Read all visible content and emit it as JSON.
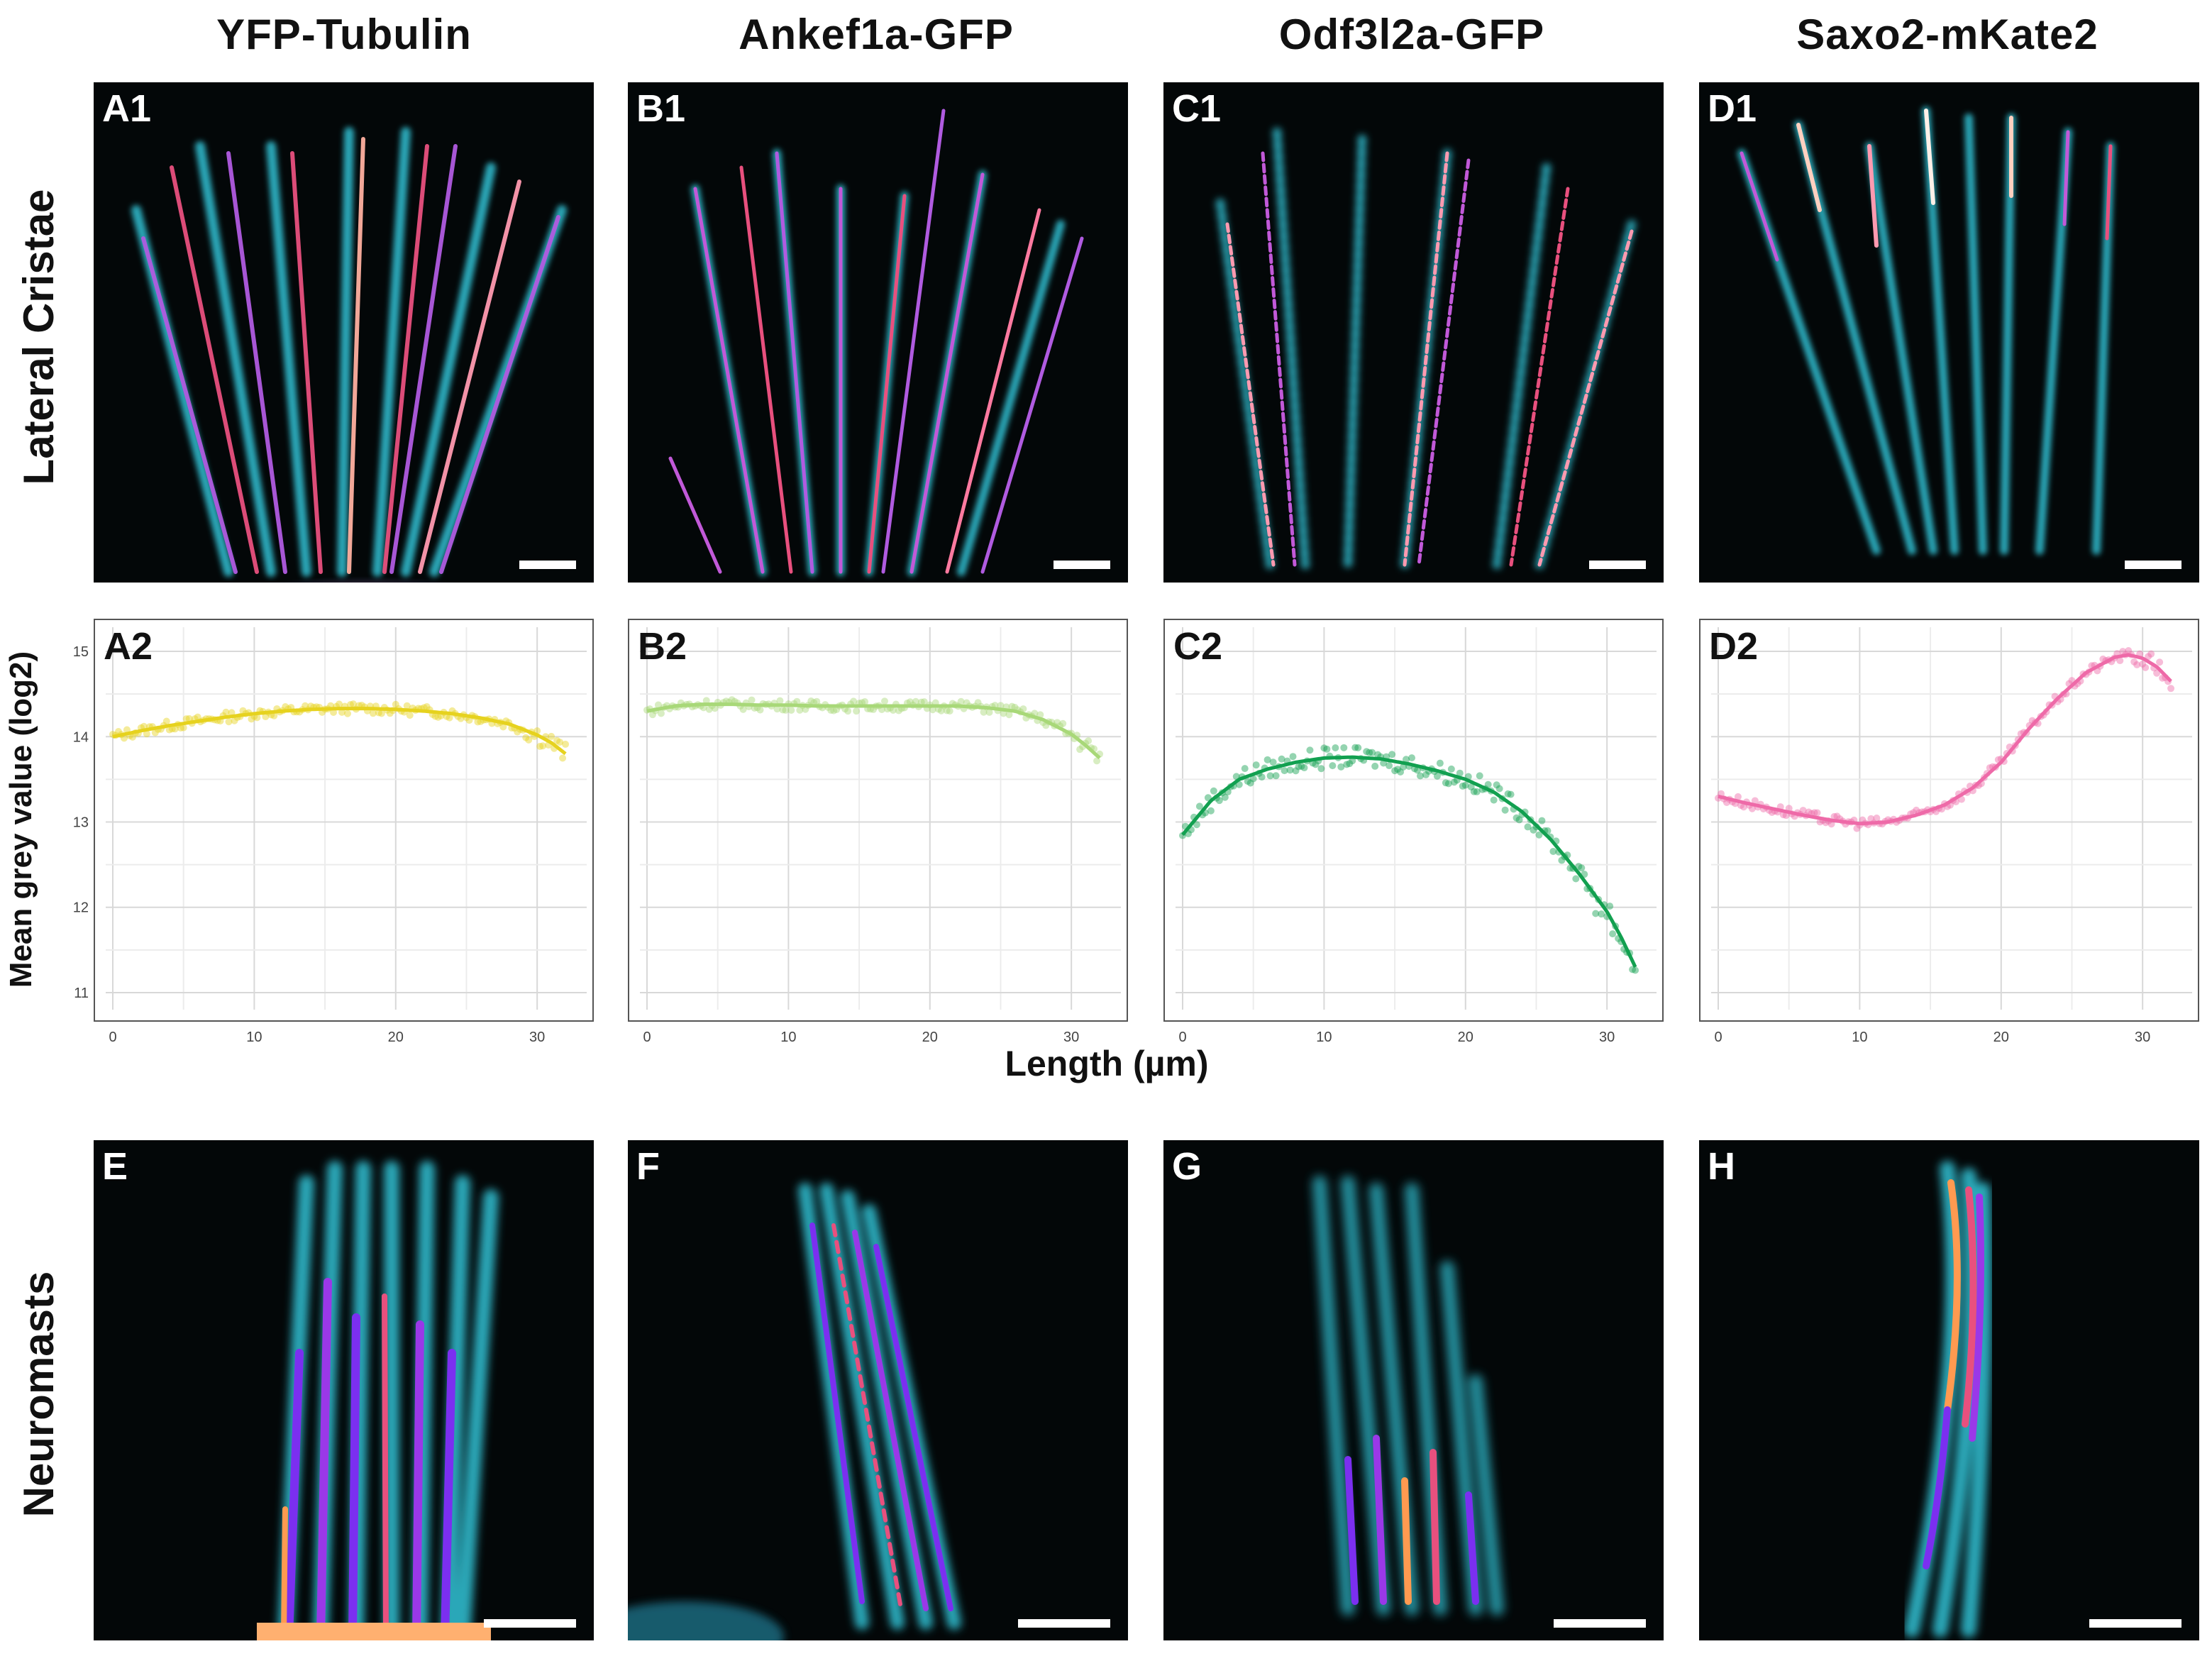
{
  "columns": [
    "YFP-Tubulin",
    "Ankef1a-GFP",
    "Odf3l2a-GFP",
    "Saxo2-mKate2"
  ],
  "rows": {
    "top": "Lateral Cristae",
    "bottom": "Neuromasts"
  },
  "panel_labels": {
    "row1": [
      "A1",
      "B1",
      "C1",
      "D1"
    ],
    "row2": [
      "A2",
      "B2",
      "C2",
      "D2"
    ],
    "row3": [
      "E",
      "F",
      "G",
      "H"
    ]
  },
  "chart_data": {
    "type": "scatter",
    "xlabel": "Length (µm)",
    "ylabel": "Mean grey value (log2)",
    "xlim": [
      0,
      33
    ],
    "ylim": [
      10.8,
      15.2
    ],
    "xticks": [
      0,
      10,
      20,
      30
    ],
    "yticks": [
      11,
      12,
      13,
      14,
      15
    ],
    "series": [
      {
        "name": "YFP-Tubulin",
        "color": "#e6d21e",
        "x": [
          0,
          2,
          4,
          6,
          8,
          10,
          12,
          14,
          16,
          18,
          20,
          22,
          24,
          26,
          28,
          30,
          31,
          32
        ],
        "y": [
          14.0,
          14.07,
          14.13,
          14.18,
          14.23,
          14.27,
          14.3,
          14.32,
          14.33,
          14.33,
          14.32,
          14.3,
          14.27,
          14.22,
          14.15,
          14.02,
          13.93,
          13.8
        ]
      },
      {
        "name": "Ankef1a-GFP",
        "color": "#a8d878",
        "x": [
          0,
          2,
          4,
          6,
          8,
          10,
          12,
          14,
          16,
          18,
          20,
          22,
          24,
          26,
          28,
          30,
          31,
          32
        ],
        "y": [
          14.3,
          14.36,
          14.38,
          14.38,
          14.37,
          14.37,
          14.36,
          14.36,
          14.36,
          14.36,
          14.36,
          14.36,
          14.34,
          14.3,
          14.2,
          14.03,
          13.9,
          13.75
        ]
      },
      {
        "name": "Odf3l2a-GFP",
        "color": "#12a050",
        "x": [
          0,
          2,
          4,
          6,
          8,
          10,
          12,
          14,
          16,
          18,
          20,
          22,
          24,
          26,
          28,
          30,
          31,
          32
        ],
        "y": [
          12.85,
          13.25,
          13.5,
          13.62,
          13.7,
          13.75,
          13.76,
          13.74,
          13.68,
          13.6,
          13.5,
          13.35,
          13.12,
          12.8,
          12.4,
          11.95,
          11.65,
          11.3
        ]
      },
      {
        "name": "Saxo2-mKate2",
        "color": "#ee6aa8",
        "x": [
          0,
          2,
          4,
          6,
          8,
          10,
          12,
          14,
          16,
          18,
          20,
          22,
          24,
          26,
          28,
          29,
          30,
          31,
          32
        ],
        "y": [
          13.3,
          13.22,
          13.15,
          13.08,
          13.02,
          12.98,
          13.0,
          13.08,
          13.2,
          13.4,
          13.7,
          14.1,
          14.45,
          14.75,
          14.93,
          14.96,
          14.92,
          14.82,
          14.65
        ]
      }
    ]
  }
}
